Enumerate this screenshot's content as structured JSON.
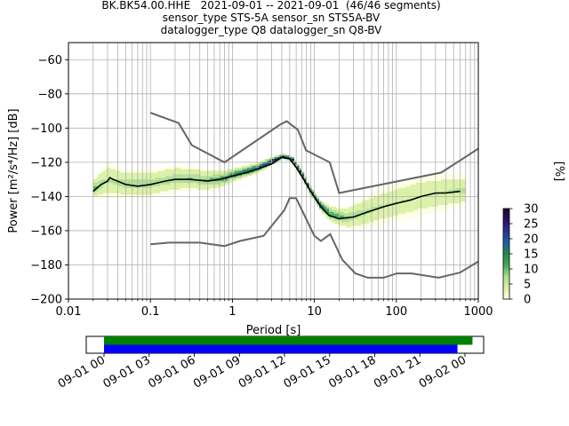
{
  "title": {
    "line1": "BK.BK54.00.HHE   2021-09-01 -- 2021-09-01  (46/46 segments)",
    "line2": "sensor_type STS-5A sensor_sn STS5A-BV",
    "line3": "datalogger_type Q8 datalogger_sn Q8-BV"
  },
  "chart_data": [
    {
      "type": "heatmap",
      "title": "BK.BK54.00.HHE   2021-09-01 -- 2021-09-01  (46/46 segments)",
      "xlabel": "Period [s]",
      "ylabel": "Power [m²/s⁴/Hz] [dB]",
      "xscale": "log",
      "xlim": [
        0.01,
        1000
      ],
      "ylim": [
        -200,
        -50
      ],
      "x_ticks": [
        0.01,
        0.1,
        1,
        10,
        100,
        1000
      ],
      "x_tick_labels": [
        "0.01",
        "0.1",
        "1",
        "10",
        "100",
        "1000"
      ],
      "y_ticks": [
        -200,
        -180,
        -160,
        -140,
        -120,
        -100,
        -80,
        -60
      ],
      "y_tick_labels": [
        "−200",
        "−180",
        "−160",
        "−140",
        "−120",
        "−100",
        "−80",
        "−60"
      ],
      "grid": true,
      "colorbar": {
        "label": "[%]",
        "range": [
          0,
          30
        ],
        "ticks": [
          0,
          5,
          10,
          15,
          20,
          25,
          30
        ],
        "colors": [
          "#ffffe5",
          "#d9f0a3",
          "#addd8e",
          "#41ab5d",
          "#238b45",
          "#225ea8",
          "#253494",
          "#2c115f",
          "#1a0a2e"
        ]
      },
      "mean_curve": {
        "color": "#000000",
        "points": [
          [
            0.02,
            -137
          ],
          [
            0.025,
            -133
          ],
          [
            0.03,
            -131
          ],
          [
            0.032,
            -129
          ],
          [
            0.035,
            -130
          ],
          [
            0.05,
            -133
          ],
          [
            0.07,
            -134
          ],
          [
            0.1,
            -133
          ],
          [
            0.15,
            -131
          ],
          [
            0.2,
            -130
          ],
          [
            0.3,
            -130
          ],
          [
            0.5,
            -131
          ],
          [
            0.7,
            -130
          ],
          [
            1,
            -128
          ],
          [
            1.5,
            -126
          ],
          [
            2,
            -124
          ],
          [
            3,
            -121
          ],
          [
            4,
            -117
          ],
          [
            5,
            -118
          ],
          [
            6,
            -123
          ],
          [
            7,
            -128
          ],
          [
            9,
            -137
          ],
          [
            12,
            -146
          ],
          [
            15,
            -151
          ],
          [
            20,
            -153
          ],
          [
            30,
            -152
          ],
          [
            45,
            -149
          ],
          [
            70,
            -146
          ],
          [
            100,
            -144
          ],
          [
            150,
            -142
          ],
          [
            200,
            -140
          ],
          [
            300,
            -138
          ],
          [
            400,
            -138
          ],
          [
            600,
            -137
          ]
        ]
      },
      "noise_models": [
        {
          "name": "NHNM",
          "color": "#666666",
          "points": [
            [
              0.1,
              -91
            ],
            [
              0.22,
              -97
            ],
            [
              0.32,
              -110
            ],
            [
              0.8,
              -120
            ],
            [
              3.8,
              -98
            ],
            [
              4.6,
              -96
            ],
            [
              6.3,
              -101
            ],
            [
              7.9,
              -113
            ],
            [
              15.4,
              -120
            ],
            [
              20,
              -138
            ],
            [
              354,
              -126
            ],
            [
              1000,
              -112
            ]
          ]
        },
        {
          "name": "NLNM",
          "color": "#666666",
          "points": [
            [
              0.1,
              -168
            ],
            [
              0.17,
              -167
            ],
            [
              0.4,
              -167
            ],
            [
              0.8,
              -169
            ],
            [
              1.24,
              -166
            ],
            [
              2.4,
              -163
            ],
            [
              4.3,
              -148
            ],
            [
              5.0,
              -141
            ],
            [
              6.0,
              -141
            ],
            [
              10,
              -163
            ],
            [
              12,
              -166
            ],
            [
              15.6,
              -162
            ],
            [
              21.9,
              -177
            ],
            [
              31.6,
              -185
            ],
            [
              45,
              -187.5
            ],
            [
              70,
              -187.5
            ],
            [
              101,
              -185
            ],
            [
              154,
              -185
            ],
            [
              328,
              -187.5
            ],
            [
              600,
              -184.5
            ],
            [
              1000,
              -178
            ]
          ]
        }
      ],
      "psd_distribution": {
        "centers": [
          [
            0.02,
            -136
          ],
          [
            0.03,
            -131
          ],
          [
            0.05,
            -133
          ],
          [
            0.1,
            -133
          ],
          [
            0.2,
            -130
          ],
          [
            0.3,
            -130
          ],
          [
            0.5,
            -131
          ],
          [
            0.8,
            -130
          ],
          [
            1,
            -128
          ],
          [
            2,
            -124
          ],
          [
            3,
            -120
          ],
          [
            4.2,
            -117
          ],
          [
            5.5,
            -119
          ],
          [
            7,
            -127
          ],
          [
            9,
            -137
          ],
          [
            12,
            -146
          ],
          [
            16,
            -151
          ],
          [
            25,
            -153
          ],
          [
            40,
            -150
          ],
          [
            70,
            -146
          ],
          [
            120,
            -143
          ],
          [
            200,
            -140
          ],
          [
            400,
            -138
          ],
          [
            650,
            -137
          ]
        ],
        "spreads": [
          [
            0.02,
            6
          ],
          [
            0.03,
            14
          ],
          [
            0.05,
            10
          ],
          [
            0.1,
            10
          ],
          [
            0.2,
            10
          ],
          [
            0.3,
            9
          ],
          [
            0.5,
            8
          ],
          [
            0.8,
            6
          ],
          [
            1,
            5
          ],
          [
            2,
            4
          ],
          [
            3,
            3
          ],
          [
            4.2,
            2
          ],
          [
            5.5,
            2
          ],
          [
            7,
            3
          ],
          [
            9,
            3
          ],
          [
            12,
            4
          ],
          [
            16,
            6
          ],
          [
            25,
            8
          ],
          [
            40,
            12
          ],
          [
            70,
            14
          ],
          [
            120,
            15
          ],
          [
            200,
            16
          ],
          [
            400,
            14
          ],
          [
            650,
            12
          ]
        ]
      }
    },
    {
      "type": "timeline",
      "xlim": [
        "2021-09-01 00:00",
        "2021-09-02 00:00"
      ],
      "x_tick_labels": [
        "09-01 00",
        "09-01 03",
        "09-01 06",
        "09-01 09",
        "09-01 12",
        "09-01 15",
        "09-01 18",
        "09-01 21",
        "09-02 00"
      ],
      "bars": [
        {
          "color": "#008000",
          "start": "2021-09-01 00:00",
          "end": "2021-09-02 00:30"
        },
        {
          "color": "#0000ff",
          "start": "2021-09-01 00:00",
          "end": "2021-09-01 23:30"
        }
      ]
    }
  ]
}
